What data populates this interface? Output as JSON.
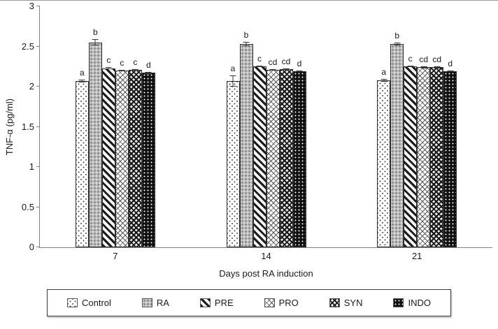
{
  "chart_data": {
    "type": "bar",
    "title": "",
    "xlabel": "Days post RA induction",
    "ylabel": "TNF-α (pg/ml)",
    "ylim": [
      0,
      3
    ],
    "yticks": [
      "0",
      "0.5",
      "1",
      "1.5",
      "2",
      "2.5",
      "3"
    ],
    "categories": [
      "7",
      "14",
      "21"
    ],
    "series": [
      {
        "name": "Control",
        "values": [
          2.07,
          2.07,
          2.08
        ],
        "errors": [
          0.015,
          0.07,
          0.015
        ],
        "letters": [
          "a",
          "a",
          "a"
        ]
      },
      {
        "name": "RA",
        "values": [
          2.55,
          2.53,
          2.53
        ],
        "errors": [
          0.04,
          0.025,
          0.02
        ],
        "letters": [
          "b",
          "b",
          "b"
        ]
      },
      {
        "name": "PRE",
        "values": [
          2.23,
          2.25,
          2.25
        ],
        "errors": [
          0.01,
          0.01,
          0.01
        ],
        "letters": [
          "c",
          "c",
          "c"
        ]
      },
      {
        "name": "PRO",
        "values": [
          2.2,
          2.21,
          2.24
        ],
        "errors": [
          0.01,
          0.01,
          0.01
        ],
        "letters": [
          "c",
          "cd",
          "cd"
        ]
      },
      {
        "name": "SYN",
        "values": [
          2.21,
          2.22,
          2.24
        ],
        "errors": [
          0.01,
          0.01,
          0.01
        ],
        "letters": [
          "c",
          "cd",
          "cd"
        ]
      },
      {
        "name": "INDO",
        "values": [
          2.17,
          2.19,
          2.19
        ],
        "errors": [
          0.01,
          0.01,
          0.01
        ],
        "letters": [
          "d",
          "d",
          "d"
        ]
      }
    ],
    "legend": [
      "Control",
      "RA",
      "PRE",
      "PRO",
      "SYN",
      "INDO"
    ],
    "legend_position": "bottom",
    "grid": false
  }
}
